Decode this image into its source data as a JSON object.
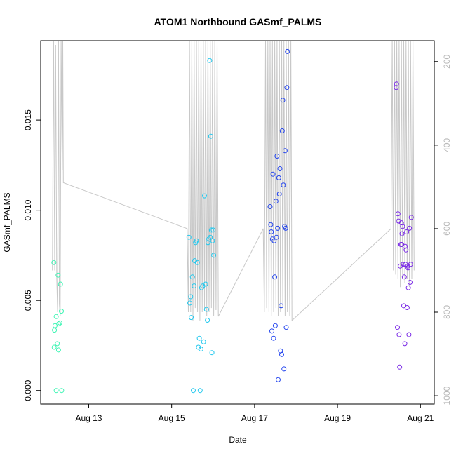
{
  "chart_data": {
    "type": "scatter",
    "title": "ATOM1 Northbound GASmf_PALMS",
    "xlabel": "Date",
    "ylabel": "GASmf_PALMS",
    "xlim": [
      "2016-08-11T20:12",
      "2016-08-21T08:00"
    ],
    "ylim": [
      -0.00075,
      0.0194
    ],
    "x_ticks": [
      {
        "date": "2016-08-13",
        "label": "Aug 13"
      },
      {
        "date": "2016-08-15",
        "label": "Aug 15"
      },
      {
        "date": "2016-08-17",
        "label": "Aug 17"
      },
      {
        "date": "2016-08-19",
        "label": "Aug 19"
      },
      {
        "date": "2016-08-21",
        "label": "Aug 21"
      }
    ],
    "y_ticks": [
      {
        "value": 0.0,
        "label": "0.000"
      },
      {
        "value": 0.005,
        "label": "0.005"
      },
      {
        "value": 0.01,
        "label": "0.010"
      },
      {
        "value": 0.015,
        "label": "0.015"
      }
    ],
    "right_axis": {
      "lim": [
        1020,
        150
      ],
      "ticks": [
        {
          "value": 200,
          "label": "200"
        },
        {
          "value": 400,
          "label": "400"
        },
        {
          "value": 600,
          "label": "600"
        },
        {
          "value": 800,
          "label": "800"
        },
        {
          "value": 1000,
          "label": "1000"
        }
      ],
      "color": "#b8b8b8"
    },
    "line_color": "#c8c8c8",
    "colors": [
      "#3ef5b4",
      "#22c8ee",
      "#2244ee",
      "#7a2ae6"
    ],
    "series": [
      {
        "color": "#3ef5b4",
        "points": [
          [
            "2016-08-12T03:50",
            0.0071
          ],
          [
            "2016-08-12T04:10",
            0.00335
          ],
          [
            "2016-08-12T04:30",
            0.0036
          ],
          [
            "2016-08-12T04:00",
            0.0024
          ],
          [
            "2016-08-12T05:10",
            0.0041
          ],
          [
            "2016-08-12T05:50",
            0.0026
          ],
          [
            "2016-08-12T05:10",
            0.0
          ],
          [
            "2016-08-12T06:15",
            0.0064
          ],
          [
            "2016-08-12T06:30",
            0.00225
          ],
          [
            "2016-08-12T06:40",
            0.0037
          ],
          [
            "2016-08-12T07:20",
            0.00375
          ],
          [
            "2016-08-12T07:40",
            0.0059
          ],
          [
            "2016-08-12T08:10",
            0.0044
          ],
          [
            "2016-08-12T08:20",
            0.0
          ]
        ],
        "pressure": [
          [
            "2016-08-12T03:00",
            700
          ],
          [
            "2016-08-12T03:40",
            150
          ],
          [
            "2016-08-12T04:20",
            700
          ],
          [
            "2016-08-12T04:50",
            160
          ],
          [
            "2016-08-12T05:30",
            720
          ],
          [
            "2016-08-12T06:00",
            800
          ],
          [
            "2016-08-12T06:30",
            150
          ],
          [
            "2016-08-12T07:00",
            780
          ],
          [
            "2016-08-12T07:30",
            810
          ],
          [
            "2016-08-12T08:00",
            150
          ],
          [
            "2016-08-12T08:40",
            460
          ],
          [
            "2016-08-12T09:00",
            150
          ],
          [
            "2016-08-12T09:20",
            490
          ]
        ]
      },
      {
        "color": "#22c8ee",
        "points": [
          [
            "2016-08-15T10:00",
            0.0085
          ],
          [
            "2016-08-15T10:30",
            0.00485
          ],
          [
            "2016-08-15T11:00",
            0.0052
          ],
          [
            "2016-08-15T11:20",
            0.00405
          ],
          [
            "2016-08-15T12:00",
            0.0063
          ],
          [
            "2016-08-15T12:30",
            0.0
          ],
          [
            "2016-08-15T13:00",
            0.0058
          ],
          [
            "2016-08-15T13:20",
            0.0072
          ],
          [
            "2016-08-15T13:50",
            0.0082
          ],
          [
            "2016-08-15T14:20",
            0.0083
          ],
          [
            "2016-08-15T14:50",
            0.0071
          ],
          [
            "2016-08-15T15:30",
            0.0024
          ],
          [
            "2016-08-15T16:00",
            0.0029
          ],
          [
            "2016-08-15T16:30",
            0.0
          ],
          [
            "2016-08-15T17:00",
            0.0023
          ],
          [
            "2016-08-15T17:20",
            0.0057
          ],
          [
            "2016-08-15T18:00",
            0.0058
          ],
          [
            "2016-08-15T18:30",
            0.0027
          ],
          [
            "2016-08-15T19:00",
            0.0108
          ],
          [
            "2016-08-15T19:40",
            0.0059
          ],
          [
            "2016-08-15T20:10",
            0.0045
          ],
          [
            "2016-08-15T20:40",
            0.0039
          ],
          [
            "2016-08-15T21:00",
            0.0082
          ],
          [
            "2016-08-15T21:30",
            0.0084
          ],
          [
            "2016-08-15T22:00",
            0.0183
          ],
          [
            "2016-08-15T22:20",
            0.0085
          ],
          [
            "2016-08-15T22:40",
            0.0141
          ],
          [
            "2016-08-15T23:00",
            0.0089
          ],
          [
            "2016-08-15T23:20",
            0.0021
          ],
          [
            "2016-08-15T23:40",
            0.0083
          ],
          [
            "2016-08-16T00:00",
            0.0089
          ],
          [
            "2016-08-16T00:20",
            0.0075
          ]
        ],
        "pressure": [
          [
            "2016-08-15T09:00",
            600
          ],
          [
            "2016-08-15T09:40",
            800
          ],
          [
            "2016-08-15T10:20",
            150
          ],
          [
            "2016-08-15T11:00",
            800
          ],
          [
            "2016-08-15T11:40",
            150
          ],
          [
            "2016-08-15T12:20",
            820
          ],
          [
            "2016-08-15T13:00",
            150
          ],
          [
            "2016-08-15T13:40",
            790
          ],
          [
            "2016-08-15T14:20",
            150
          ],
          [
            "2016-08-15T15:00",
            800
          ],
          [
            "2016-08-15T15:40",
            150
          ],
          [
            "2016-08-15T16:20",
            820
          ],
          [
            "2016-08-15T17:00",
            150
          ],
          [
            "2016-08-15T17:40",
            800
          ],
          [
            "2016-08-15T18:20",
            150
          ],
          [
            "2016-08-15T19:00",
            790
          ],
          [
            "2016-08-15T19:40",
            150
          ],
          [
            "2016-08-15T20:20",
            810
          ],
          [
            "2016-08-15T21:00",
            150
          ],
          [
            "2016-08-15T21:40",
            800
          ],
          [
            "2016-08-15T22:20",
            150
          ],
          [
            "2016-08-15T23:00",
            790
          ],
          [
            "2016-08-15T23:40",
            150
          ],
          [
            "2016-08-16T00:20",
            810
          ],
          [
            "2016-08-16T01:00",
            150
          ],
          [
            "2016-08-16T01:40",
            795
          ],
          [
            "2016-08-16T02:20",
            150
          ],
          [
            "2016-08-16T03:00",
            810
          ]
        ]
      },
      {
        "color": "#2244ee",
        "points": [
          [
            "2016-08-17T09:00",
            0.0102
          ],
          [
            "2016-08-17T09:20",
            0.0092
          ],
          [
            "2016-08-17T09:40",
            0.0088
          ],
          [
            "2016-08-17T10:00",
            0.0033
          ],
          [
            "2016-08-17T10:20",
            0.0084
          ],
          [
            "2016-08-17T10:40",
            0.012
          ],
          [
            "2016-08-17T11:00",
            0.0029
          ],
          [
            "2016-08-17T11:20",
            0.0083
          ],
          [
            "2016-08-17T11:40",
            0.0063
          ],
          [
            "2016-08-17T12:00",
            0.0036
          ],
          [
            "2016-08-17T12:20",
            0.0105
          ],
          [
            "2016-08-17T12:40",
            0.0085
          ],
          [
            "2016-08-17T13:00",
            0.013
          ],
          [
            "2016-08-17T13:20",
            0.009
          ],
          [
            "2016-08-17T13:40",
            0.0006
          ],
          [
            "2016-08-17T14:00",
            0.0118
          ],
          [
            "2016-08-17T14:20",
            0.0109
          ],
          [
            "2016-08-17T14:40",
            0.0123
          ],
          [
            "2016-08-17T15:00",
            0.0022
          ],
          [
            "2016-08-17T15:20",
            0.0047
          ],
          [
            "2016-08-17T15:40",
            0.002
          ],
          [
            "2016-08-17T16:00",
            0.0144
          ],
          [
            "2016-08-17T16:20",
            0.0161
          ],
          [
            "2016-08-17T16:40",
            0.0114
          ],
          [
            "2016-08-17T17:00",
            0.0012
          ],
          [
            "2016-08-17T17:20",
            0.0091
          ],
          [
            "2016-08-17T17:40",
            0.0133
          ],
          [
            "2016-08-17T18:00",
            0.009
          ],
          [
            "2016-08-17T18:20",
            0.0035
          ],
          [
            "2016-08-17T18:40",
            0.0168
          ],
          [
            "2016-08-17T19:00",
            0.0188
          ]
        ],
        "pressure": [
          [
            "2016-08-17T05:00",
            600
          ],
          [
            "2016-08-17T05:40",
            800
          ],
          [
            "2016-08-17T06:20",
            150
          ],
          [
            "2016-08-17T07:00",
            790
          ],
          [
            "2016-08-17T07:40",
            150
          ],
          [
            "2016-08-17T08:20",
            800
          ],
          [
            "2016-08-17T09:00",
            150
          ],
          [
            "2016-08-17T09:40",
            810
          ],
          [
            "2016-08-17T10:20",
            150
          ],
          [
            "2016-08-17T11:00",
            800
          ],
          [
            "2016-08-17T11:40",
            150
          ],
          [
            "2016-08-17T12:20",
            790
          ],
          [
            "2016-08-17T13:00",
            150
          ],
          [
            "2016-08-17T13:40",
            810
          ],
          [
            "2016-08-17T14:20",
            150
          ],
          [
            "2016-08-17T15:00",
            800
          ],
          [
            "2016-08-17T15:40",
            150
          ],
          [
            "2016-08-17T16:20",
            790
          ],
          [
            "2016-08-17T17:00",
            150
          ],
          [
            "2016-08-17T17:40",
            810
          ],
          [
            "2016-08-17T18:20",
            150
          ],
          [
            "2016-08-17T19:00",
            800
          ],
          [
            "2016-08-17T19:40",
            150
          ],
          [
            "2016-08-17T20:20",
            810
          ],
          [
            "2016-08-17T21:00",
            150
          ],
          [
            "2016-08-17T21:40",
            820
          ]
        ]
      },
      {
        "color": "#7a2ae6",
        "points": [
          [
            "2016-08-20T10:00",
            0.0168
          ],
          [
            "2016-08-20T10:10",
            0.017
          ],
          [
            "2016-08-20T10:40",
            0.0035
          ],
          [
            "2016-08-20T11:00",
            0.0098
          ],
          [
            "2016-08-20T11:20",
            0.0094
          ],
          [
            "2016-08-20T11:40",
            0.0031
          ],
          [
            "2016-08-20T12:00",
            0.0013
          ],
          [
            "2016-08-20T12:20",
            0.0069
          ],
          [
            "2016-08-20T12:40",
            0.0081
          ],
          [
            "2016-08-20T13:00",
            0.0093
          ],
          [
            "2016-08-20T13:20",
            0.0087
          ],
          [
            "2016-08-20T13:40",
            0.0091
          ],
          [
            "2016-08-20T14:00",
            0.007
          ],
          [
            "2016-08-20T14:20",
            0.0047
          ],
          [
            "2016-08-20T14:40",
            0.0063
          ],
          [
            "2016-08-20T15:00",
            0.0026
          ],
          [
            "2016-08-20T15:20",
            0.007
          ],
          [
            "2016-08-20T15:40",
            0.0078
          ],
          [
            "2016-08-20T16:00",
            0.0088
          ],
          [
            "2016-08-20T16:20",
            0.0046
          ],
          [
            "2016-08-20T16:40",
            0.0069
          ],
          [
            "2016-08-20T17:00",
            0.0057
          ],
          [
            "2016-08-20T17:20",
            0.0031
          ],
          [
            "2016-08-20T17:40",
            0.009
          ],
          [
            "2016-08-20T18:00",
            0.006
          ],
          [
            "2016-08-20T18:20",
            0.007
          ],
          [
            "2016-08-20T18:40",
            0.0096
          ],
          [
            "2016-08-20T13:10",
            0.0081
          ],
          [
            "2016-08-20T15:10",
            0.008
          ],
          [
            "2016-08-20T16:50",
            0.0068
          ]
        ],
        "pressure": [
          [
            "2016-08-20T07:00",
            600
          ],
          [
            "2016-08-20T07:40",
            150
          ],
          [
            "2016-08-20T08:20",
            700
          ],
          [
            "2016-08-20T09:00",
            150
          ],
          [
            "2016-08-20T09:40",
            710
          ],
          [
            "2016-08-20T10:20",
            150
          ],
          [
            "2016-08-20T11:00",
            720
          ],
          [
            "2016-08-20T11:40",
            150
          ],
          [
            "2016-08-20T12:20",
            740
          ],
          [
            "2016-08-20T13:00",
            150
          ],
          [
            "2016-08-20T13:40",
            720
          ],
          [
            "2016-08-20T14:20",
            150
          ],
          [
            "2016-08-20T15:00",
            730
          ],
          [
            "2016-08-20T15:40",
            150
          ],
          [
            "2016-08-20T16:20",
            720
          ],
          [
            "2016-08-20T17:00",
            150
          ],
          [
            "2016-08-20T17:40",
            740
          ],
          [
            "2016-08-20T18:20",
            150
          ],
          [
            "2016-08-20T19:00",
            720
          ],
          [
            "2016-08-20T19:40",
            150
          ],
          [
            "2016-08-20T20:20",
            700
          ]
        ]
      }
    ]
  }
}
